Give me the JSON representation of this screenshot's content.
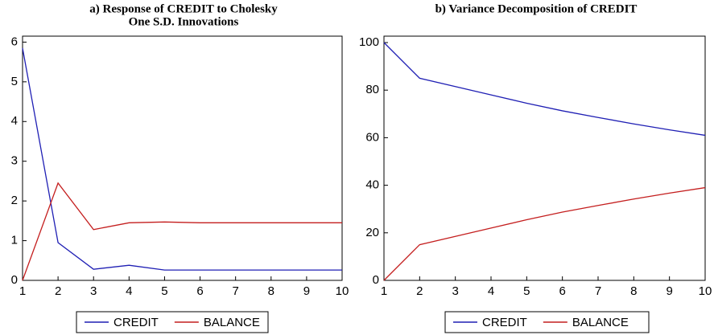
{
  "chart_data": [
    {
      "type": "line",
      "title": [
        "a) Response of CREDIT to Cholesky",
        "One S.D. Innovations"
      ],
      "x": [
        1,
        2,
        3,
        4,
        5,
        6,
        7,
        8,
        9,
        10
      ],
      "series": [
        {
          "name": "CREDIT",
          "color": "#1f1fb4",
          "values": [
            5.85,
            0.95,
            0.28,
            0.38,
            0.26,
            0.26,
            0.26,
            0.26,
            0.26,
            0.26
          ]
        },
        {
          "name": "BALANCE",
          "color": "#c41e1e",
          "values": [
            0,
            2.45,
            1.28,
            1.45,
            1.47,
            1.45,
            1.45,
            1.45,
            1.45,
            1.45
          ]
        }
      ],
      "xlim": [
        1,
        10
      ],
      "xticks": [
        1,
        2,
        3,
        4,
        5,
        6,
        7,
        8,
        9,
        10
      ],
      "ylim": [
        0,
        6.15
      ],
      "yticks": [
        0,
        1,
        2,
        3,
        4,
        5,
        6
      ],
      "legend": "bottom"
    },
    {
      "type": "line",
      "title": [
        "b) Variance Decomposition of CREDIT"
      ],
      "x": [
        1,
        2,
        3,
        4,
        5,
        6,
        7,
        8,
        9,
        10
      ],
      "series": [
        {
          "name": "CREDIT",
          "color": "#1f1fb4",
          "values": [
            100,
            85,
            81.5,
            78,
            74.5,
            71.3,
            68.5,
            65.8,
            63.3,
            61
          ]
        },
        {
          "name": "BALANCE",
          "color": "#c41e1e",
          "values": [
            0,
            15,
            18.5,
            22,
            25.5,
            28.7,
            31.5,
            34.2,
            36.7,
            39
          ]
        }
      ],
      "xlim": [
        1,
        10
      ],
      "xticks": [
        1,
        2,
        3,
        4,
        5,
        6,
        7,
        8,
        9,
        10
      ],
      "ylim": [
        0,
        102.7
      ],
      "yticks": [
        0,
        20,
        40,
        60,
        80,
        100
      ],
      "legend": "bottom"
    }
  ]
}
